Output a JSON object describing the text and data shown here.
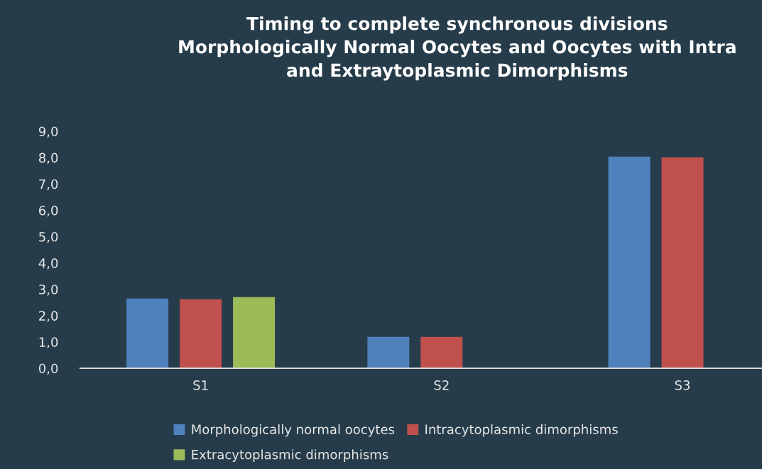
{
  "chart_data": {
    "type": "bar",
    "title": "Timing to complete synchronous divisions\nMorphologically Normal Oocytes and Oocytes with Intra\nand Extraytoplasmic Dimorphisms",
    "categories": [
      "S1",
      "S2",
      "S3"
    ],
    "series": [
      {
        "name": "Morphologically normal oocytes",
        "color": "#4f81bd",
        "values": [
          2.65,
          1.19,
          8.04
        ]
      },
      {
        "name": "Intracytoplasmic dimorphisms",
        "color": "#c0504d",
        "values": [
          2.62,
          1.19,
          8.01
        ]
      },
      {
        "name": "Extracytoplasmic dimorphisms",
        "color": "#9bbb59",
        "values": [
          2.7,
          null,
          null
        ]
      }
    ],
    "ylim": [
      0,
      9
    ],
    "yticks": [
      {
        "value": 0,
        "label": "0,0"
      },
      {
        "value": 1,
        "label": "1,0"
      },
      {
        "value": 2,
        "label": "2,0"
      },
      {
        "value": 3,
        "label": "3,0"
      },
      {
        "value": 4,
        "label": "4,0"
      },
      {
        "value": 5,
        "label": "5,0"
      },
      {
        "value": 6,
        "label": "6,0"
      },
      {
        "value": 7,
        "label": "7,0"
      },
      {
        "value": 8,
        "label": "8,0"
      },
      {
        "value": 9,
        "label": "9,0"
      }
    ],
    "grid": false,
    "legend": "bottom"
  }
}
